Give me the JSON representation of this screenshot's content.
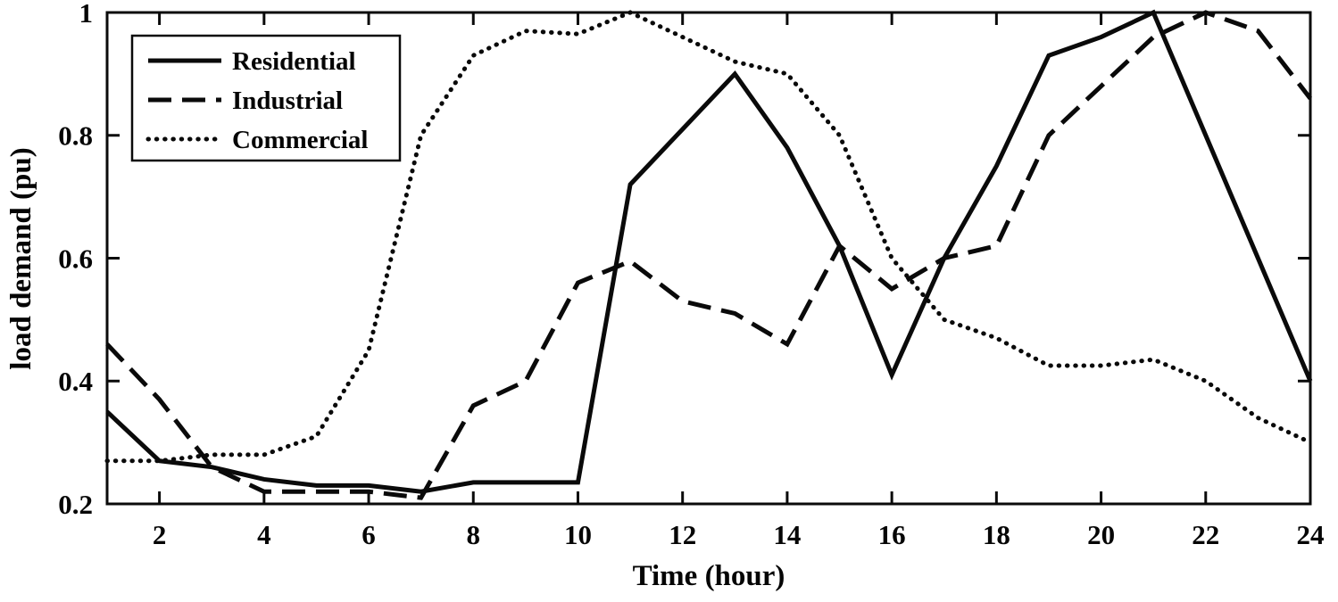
{
  "figure": {
    "background": "#ffffff",
    "line_color": "#0a0a0a"
  },
  "chart_data": {
    "type": "line",
    "title": "",
    "xlabel": "Time (hour)",
    "ylabel": "load demand (pu)",
    "xlim": [
      1,
      24
    ],
    "ylim": [
      0.2,
      1.0
    ],
    "grid": false,
    "legend_position": "top-left",
    "x_ticks": [
      2,
      4,
      6,
      8,
      10,
      12,
      14,
      16,
      18,
      20,
      22,
      24
    ],
    "y_ticks": [
      0.2,
      0.4,
      0.6,
      0.8,
      1
    ],
    "y_tick_labels": [
      "0.2",
      "0.4",
      "0.6",
      "0.8",
      "1"
    ],
    "x": [
      1,
      2,
      3,
      4,
      5,
      6,
      7,
      8,
      9,
      10,
      11,
      12,
      13,
      14,
      15,
      16,
      17,
      18,
      19,
      20,
      21,
      22,
      23,
      24
    ],
    "series": [
      {
        "name": "Residential",
        "style": "solid",
        "values": [
          0.35,
          0.27,
          0.26,
          0.24,
          0.23,
          0.23,
          0.22,
          0.235,
          0.235,
          0.235,
          0.72,
          0.81,
          0.9,
          0.78,
          0.62,
          0.41,
          0.6,
          0.75,
          0.93,
          0.96,
          1.0,
          0.8,
          0.6,
          0.4
        ]
      },
      {
        "name": "Industrial",
        "style": "dashed",
        "values": [
          0.46,
          0.37,
          0.26,
          0.22,
          0.22,
          0.22,
          0.21,
          0.36,
          0.4,
          0.56,
          0.595,
          0.53,
          0.51,
          0.46,
          0.62,
          0.55,
          0.6,
          0.62,
          0.8,
          0.88,
          0.96,
          1.0,
          0.97,
          0.86
        ]
      },
      {
        "name": "Commercial",
        "style": "dotted",
        "values": [
          0.27,
          0.27,
          0.28,
          0.28,
          0.31,
          0.45,
          0.8,
          0.93,
          0.97,
          0.965,
          1.0,
          0.96,
          0.92,
          0.9,
          0.8,
          0.6,
          0.5,
          0.47,
          0.425,
          0.425,
          0.435,
          0.4,
          0.34,
          0.3
        ]
      }
    ]
  }
}
